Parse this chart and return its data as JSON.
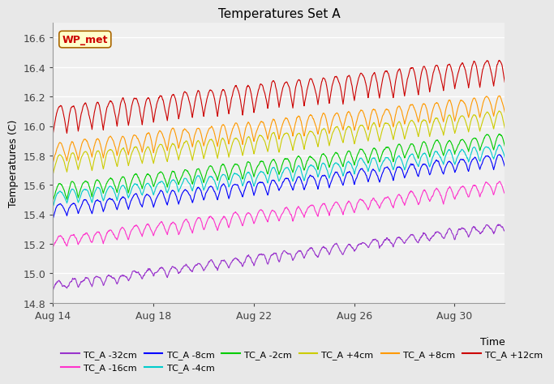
{
  "title": "Temperatures Set A",
  "xlabel": "Time",
  "ylabel": "Temperatures (C)",
  "ylim": [
    14.8,
    16.7
  ],
  "xlim": [
    0,
    18
  ],
  "x_ticks": [
    0,
    4,
    8,
    12,
    16
  ],
  "x_tick_labels": [
    "Aug 14",
    "Aug 18",
    "Aug 22",
    "Aug 26",
    "Aug 30"
  ],
  "y_ticks": [
    14.8,
    15.0,
    15.2,
    15.4,
    15.6,
    15.8,
    16.0,
    16.2,
    16.4,
    16.6
  ],
  "series": [
    {
      "label": "TC_A -32cm",
      "color": "#9933CC",
      "base_start": 14.88,
      "base_end": 15.28,
      "amplitude": 0.06,
      "noise_std": 0.03
    },
    {
      "label": "TC_A -16cm",
      "color": "#FF33CC",
      "base_start": 15.17,
      "base_end": 15.54,
      "amplitude": 0.08,
      "noise_std": 0.025
    },
    {
      "label": "TC_A -8cm",
      "color": "#0000FF",
      "base_start": 15.38,
      "base_end": 15.72,
      "amplitude": 0.09,
      "noise_std": 0.02
    },
    {
      "label": "TC_A -4cm",
      "color": "#00CCCC",
      "base_start": 15.46,
      "base_end": 15.78,
      "amplitude": 0.09,
      "noise_std": 0.02
    },
    {
      "label": "TC_A -2cm",
      "color": "#00CC00",
      "base_start": 15.5,
      "base_end": 15.85,
      "amplitude": 0.1,
      "noise_std": 0.02
    },
    {
      "label": "TC_A +4cm",
      "color": "#CCCC00",
      "base_start": 15.68,
      "base_end": 15.98,
      "amplitude": 0.12,
      "noise_std": 0.02
    },
    {
      "label": "TC_A +8cm",
      "color": "#FF9900",
      "base_start": 15.75,
      "base_end": 16.08,
      "amplitude": 0.13,
      "noise_std": 0.02
    },
    {
      "label": "TC_A +12cm",
      "color": "#CC0000",
      "base_start": 15.95,
      "base_end": 16.28,
      "amplitude": 0.18,
      "noise_std": 0.025
    }
  ],
  "wp_met_box": {
    "text": "WP_met",
    "text_color": "#CC0000",
    "bg_color": "#FFFFCC",
    "edge_color": "#AA6600",
    "fontsize": 9
  },
  "bg_color": "#E8E8E8",
  "plot_bg_color": "#F0F0F0",
  "grid_color": "#FFFFFF",
  "linewidth": 0.8,
  "n_points": 1800,
  "days": 18,
  "title_fontsize": 11,
  "axis_fontsize": 9,
  "legend_fontsize": 8
}
